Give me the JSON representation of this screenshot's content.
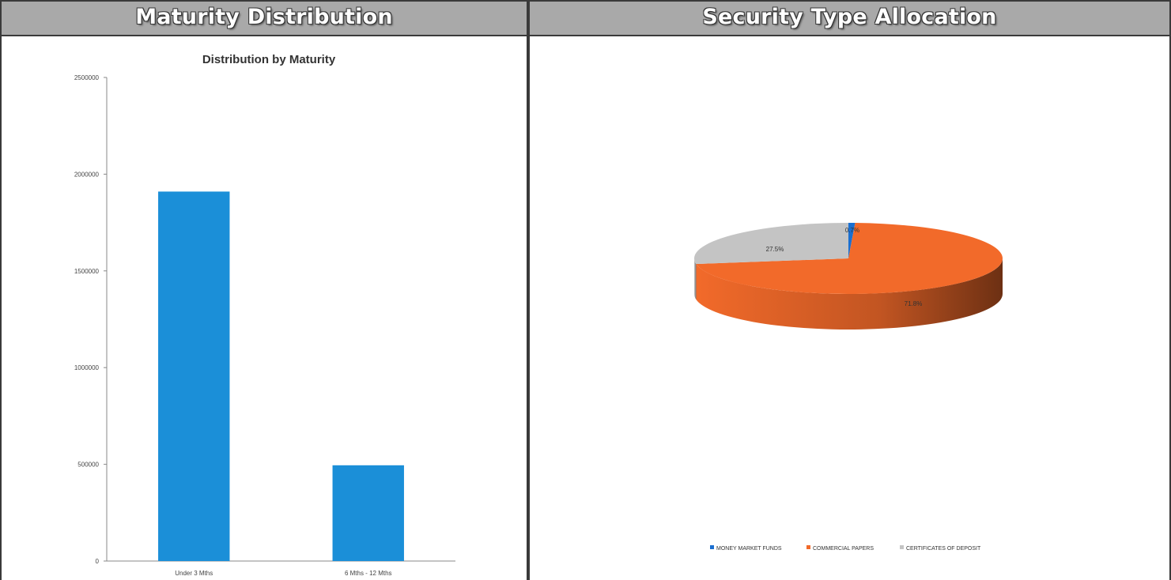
{
  "panels": {
    "left_title": "Maturity Distribution",
    "right_title": "Security Type Allocation"
  },
  "chart_data": [
    {
      "type": "bar",
      "title": "Distribution by Maturity",
      "categories": [
        "Under 3 Mths",
        "6 Mths - 12 Mths"
      ],
      "values": [
        1910000,
        495000
      ],
      "ylim": [
        0,
        2500000
      ],
      "yticks": [
        "0",
        "500000",
        "1000000",
        "1500000",
        "2000000",
        "2500000"
      ],
      "grid": false,
      "legend": "none",
      "bar_color": "#1b8fd8"
    },
    {
      "type": "pie",
      "style": "3d",
      "slices": [
        {
          "name": "MONEY MARKET FUNDS",
          "value": 0.7,
          "label": "0.7%",
          "color": "#1b6fd0"
        },
        {
          "name": "COMMERCIAL PAPERS",
          "value": 71.8,
          "label": "71.8%",
          "color": "#f26a2a"
        },
        {
          "name": "CERTIFICATES OF DEPOSIT",
          "value": 27.5,
          "label": "27.5%",
          "color": "#c4c4c4"
        }
      ],
      "legend": "bottom"
    }
  ]
}
